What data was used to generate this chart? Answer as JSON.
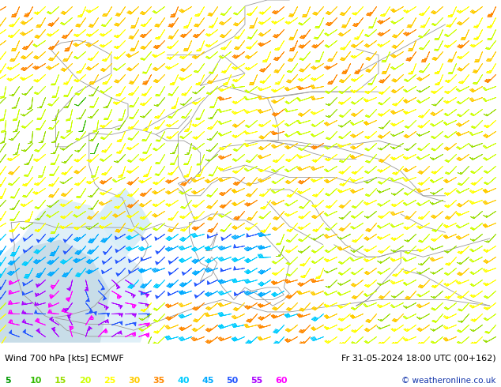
{
  "bottom_label_left": "Wind 700 hPa [kts] ECMWF",
  "bottom_label_right": "Fr 31-05-2024 18:00 UTC (00+162)",
  "copyright": "© weatheronline.co.uk",
  "bg_color": "#ccff99",
  "sea_color": "#ddeeff",
  "white_area_color": "#e8e8e8",
  "border_color": "#999999",
  "bottom_bar_color": "#ffffff",
  "figsize": [
    6.34,
    4.9
  ],
  "dpi": 100,
  "legend_values": [
    5,
    10,
    15,
    20,
    25,
    30,
    35,
    40,
    45,
    50,
    55,
    60
  ],
  "legend_colors": [
    "#009900",
    "#33bb00",
    "#99dd00",
    "#ccff00",
    "#ffff00",
    "#ffcc00",
    "#ff8800",
    "#00ccff",
    "#00aaff",
    "#2255ff",
    "#aa00ff",
    "#ff00ff"
  ]
}
